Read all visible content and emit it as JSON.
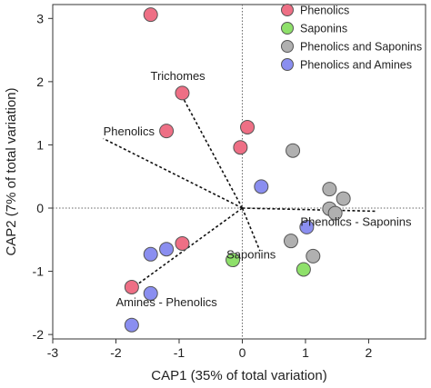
{
  "chart_data": {
    "type": "scatter",
    "xlabel": "CAP1 (35% of total variation)",
    "ylabel": "CAP2 (7% of total variation)",
    "xlim": [
      -3,
      2.9
    ],
    "ylim": [
      -2.07,
      3.22
    ],
    "xticks": [
      -3,
      -2,
      -1,
      0,
      1,
      2
    ],
    "yticks": [
      -2,
      -1,
      0,
      1,
      2,
      3
    ],
    "xtick_labels": [
      "-3",
      "-2",
      "-1",
      "0",
      "1",
      "2"
    ],
    "ytick_labels": [
      "-2",
      "-1",
      "0",
      "1",
      "2",
      "3"
    ],
    "reference_lines": {
      "x": 0,
      "y": 0,
      "style": "dotted"
    },
    "legend_position": "top-right",
    "series": [
      {
        "name": "Phenolics",
        "color": "#ee6f85",
        "points": [
          {
            "x": -1.45,
            "y": 3.06
          },
          {
            "x": -0.95,
            "y": 1.82
          },
          {
            "x": -1.2,
            "y": 1.22
          },
          {
            "x": 0.08,
            "y": 1.28
          },
          {
            "x": -0.03,
            "y": 0.96
          },
          {
            "x": -0.95,
            "y": -0.56
          },
          {
            "x": -1.75,
            "y": -1.25
          }
        ]
      },
      {
        "name": "Saponins",
        "color": "#8ee06a",
        "points": [
          {
            "x": -0.15,
            "y": -0.82
          },
          {
            "x": 0.97,
            "y": -0.97
          }
        ]
      },
      {
        "name": "Phenolics and Saponins",
        "color": "#b0b0b0",
        "points": [
          {
            "x": 0.8,
            "y": 0.91
          },
          {
            "x": 1.38,
            "y": 0.3
          },
          {
            "x": 1.6,
            "y": 0.15
          },
          {
            "x": 1.38,
            "y": -0.01
          },
          {
            "x": 1.47,
            "y": -0.08
          },
          {
            "x": 0.77,
            "y": -0.52
          },
          {
            "x": 1.12,
            "y": -0.76
          }
        ]
      },
      {
        "name": "Phenolics and Amines",
        "color": "#8a8ef0",
        "points": [
          {
            "x": 0.3,
            "y": 0.34
          },
          {
            "x": 1.02,
            "y": -0.3
          },
          {
            "x": -1.45,
            "y": -0.73
          },
          {
            "x": -1.2,
            "y": -0.65
          },
          {
            "x": -1.45,
            "y": -1.35
          },
          {
            "x": -1.75,
            "y": -1.85
          }
        ]
      }
    ],
    "vectors": [
      {
        "label": "Trichomes",
        "x": -0.98,
        "y": 1.82
      },
      {
        "label": "Phenolics",
        "x": -2.2,
        "y": 1.1
      },
      {
        "label": "Phenolics - Saponins",
        "x": 2.12,
        "y": -0.05
      },
      {
        "label": "Saponins",
        "x": 0.28,
        "y": -0.68
      },
      {
        "label": "Amines - Phenolics",
        "x": -1.65,
        "y": -1.2
      }
    ],
    "vector_labels": [
      {
        "text": "Trichomes",
        "x": -1.02,
        "y": 2.03,
        "anchor": "middle"
      },
      {
        "text": "Phenolics",
        "x": -2.2,
        "y": 1.15,
        "anchor": "start"
      },
      {
        "text": "Phenolics - Saponins",
        "x": 0.92,
        "y": -0.28,
        "anchor": "start"
      },
      {
        "text": "Saponins",
        "x": -0.25,
        "y": -0.8,
        "anchor": "start"
      },
      {
        "text": "Amines - Phenolics",
        "x": -2.0,
        "y": -1.55,
        "anchor": "start"
      }
    ]
  }
}
